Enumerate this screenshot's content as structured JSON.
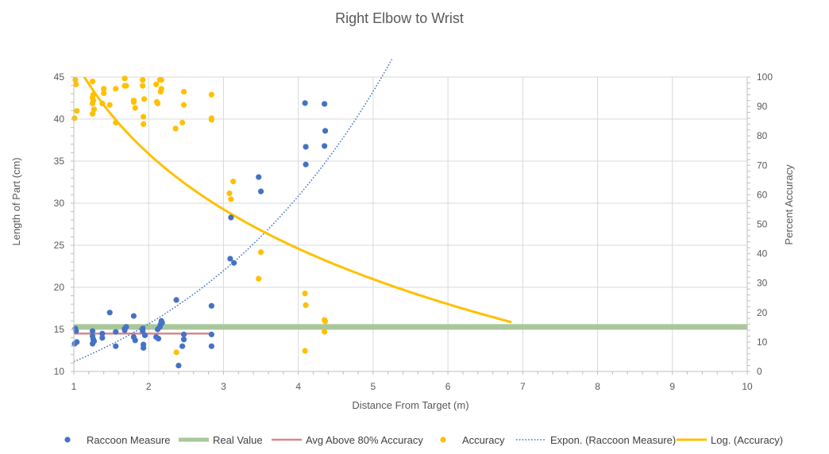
{
  "chart_data": {
    "type": "scatter",
    "title": "Right Elbow to Wrist",
    "xlabel": "Distance From Target (m)",
    "ylabel": "Length of Part (cm)",
    "y2label": "Percent Accuracy",
    "xlim": [
      1,
      10
    ],
    "ylim": [
      10,
      45
    ],
    "y2lim": [
      0,
      100
    ],
    "xticks": [
      1,
      2,
      3,
      4,
      5,
      6,
      7,
      8,
      9,
      10
    ],
    "yticks": [
      10,
      15,
      20,
      25,
      30,
      35,
      40,
      45
    ],
    "y2ticks": [
      0,
      10,
      20,
      30,
      40,
      50,
      60,
      70,
      80,
      90,
      100
    ],
    "grid": true,
    "legend_position": "bottom",
    "series": [
      {
        "name": "Raccoon Measure",
        "kind": "scatter",
        "axis": "left",
        "color": "#4472C4",
        "points": [
          [
            1.02,
            15.1
          ],
          [
            1.03,
            14.8
          ],
          [
            1.01,
            13.3
          ],
          [
            1.04,
            13.5
          ],
          [
            1.25,
            14.8
          ],
          [
            1.25,
            14.2
          ],
          [
            1.26,
            13.8
          ],
          [
            1.25,
            13.3
          ],
          [
            1.27,
            13.6
          ],
          [
            1.38,
            14.5
          ],
          [
            1.38,
            14.0
          ],
          [
            1.48,
            17.0
          ],
          [
            1.56,
            14.7
          ],
          [
            1.56,
            13.0
          ],
          [
            1.68,
            15.1
          ],
          [
            1.68,
            14.9
          ],
          [
            1.7,
            15.3
          ],
          [
            1.8,
            16.6
          ],
          [
            1.8,
            14.1
          ],
          [
            1.82,
            13.7
          ],
          [
            1.92,
            15.1
          ],
          [
            1.92,
            14.8
          ],
          [
            1.93,
            13.2
          ],
          [
            1.93,
            12.8
          ],
          [
            1.95,
            14.3
          ],
          [
            2.1,
            14.1
          ],
          [
            2.12,
            15.0
          ],
          [
            2.15,
            15.3
          ],
          [
            2.16,
            15.6
          ],
          [
            2.17,
            16.0
          ],
          [
            2.18,
            15.8
          ],
          [
            2.13,
            13.9
          ],
          [
            2.37,
            18.5
          ],
          [
            2.4,
            10.7
          ],
          [
            2.45,
            13.0
          ],
          [
            2.47,
            14.4
          ],
          [
            2.47,
            13.8
          ],
          [
            2.84,
            17.8
          ],
          [
            2.84,
            14.4
          ],
          [
            2.84,
            13.0
          ],
          [
            3.09,
            23.4
          ],
          [
            3.1,
            28.3
          ],
          [
            3.14,
            22.9
          ],
          [
            3.47,
            33.1
          ],
          [
            3.5,
            31.4
          ],
          [
            4.09,
            41.9
          ],
          [
            4.1,
            36.7
          ],
          [
            4.1,
            34.6
          ],
          [
            4.35,
            41.8
          ],
          [
            4.36,
            38.6
          ],
          [
            4.35,
            36.8
          ]
        ]
      },
      {
        "name": "Real Value",
        "kind": "line",
        "axis": "left",
        "color": "#A9C79B",
        "points": [
          [
            1,
            15.3
          ],
          [
            10,
            15.3
          ]
        ]
      },
      {
        "name": "Avg Above 80% Accuracy",
        "kind": "line",
        "axis": "left",
        "color": "#D9878A",
        "points": [
          [
            1,
            14.5
          ],
          [
            2.85,
            14.5
          ]
        ]
      },
      {
        "name": "Accuracy",
        "kind": "scatter",
        "axis": "right",
        "color": "#FFC000",
        "points": [
          [
            1.02,
            99
          ],
          [
            1.03,
            97.5
          ],
          [
            1.04,
            88.5
          ],
          [
            1.01,
            86
          ],
          [
            1.25,
            98.5
          ],
          [
            1.26,
            94
          ],
          [
            1.25,
            93
          ],
          [
            1.26,
            92
          ],
          [
            1.25,
            91
          ],
          [
            1.27,
            89
          ],
          [
            1.25,
            87.5
          ],
          [
            1.38,
            91
          ],
          [
            1.4,
            96
          ],
          [
            1.4,
            94.5
          ],
          [
            1.48,
            90.5
          ],
          [
            1.56,
            96
          ],
          [
            1.56,
            84.5
          ],
          [
            1.68,
            99.5
          ],
          [
            1.68,
            97
          ],
          [
            1.7,
            97
          ],
          [
            1.8,
            92
          ],
          [
            1.8,
            91.5
          ],
          [
            1.82,
            89.5
          ],
          [
            1.92,
            99
          ],
          [
            1.92,
            97
          ],
          [
            1.94,
            92.5
          ],
          [
            1.93,
            86.5
          ],
          [
            1.93,
            84
          ],
          [
            2.1,
            97.5
          ],
          [
            2.12,
            91
          ],
          [
            2.11,
            91.5
          ],
          [
            2.15,
            99
          ],
          [
            2.17,
            99
          ],
          [
            2.17,
            96
          ],
          [
            2.16,
            95
          ],
          [
            2.36,
            82.5
          ],
          [
            2.37,
            6.5
          ],
          [
            2.45,
            84.5
          ],
          [
            2.47,
            95
          ],
          [
            2.47,
            90.5
          ],
          [
            2.84,
            94
          ],
          [
            2.84,
            86
          ],
          [
            2.84,
            85.5
          ],
          [
            3.08,
            60.5
          ],
          [
            3.1,
            58.5
          ],
          [
            3.13,
            64.5
          ],
          [
            3.47,
            31.5
          ],
          [
            3.5,
            40.5
          ],
          [
            4.09,
            26.5
          ],
          [
            4.1,
            22.5
          ],
          [
            4.09,
            7
          ],
          [
            4.35,
            17.5
          ],
          [
            4.36,
            17
          ],
          [
            4.35,
            13.5
          ]
        ]
      },
      {
        "name": "Expon. (Raccoon Measure)",
        "kind": "trendline-exponential",
        "axis": "left",
        "color": "#4472C4",
        "range": [
          1,
          5.25
        ],
        "a": 7.95,
        "b": 0.3389
      },
      {
        "name": "Log. (Accuracy)",
        "kind": "trendline-logarithmic",
        "axis": "right",
        "color": "#FFC000",
        "range": [
          1,
          6.85
        ],
        "a": 106.1,
        "b": -46.45
      }
    ]
  }
}
